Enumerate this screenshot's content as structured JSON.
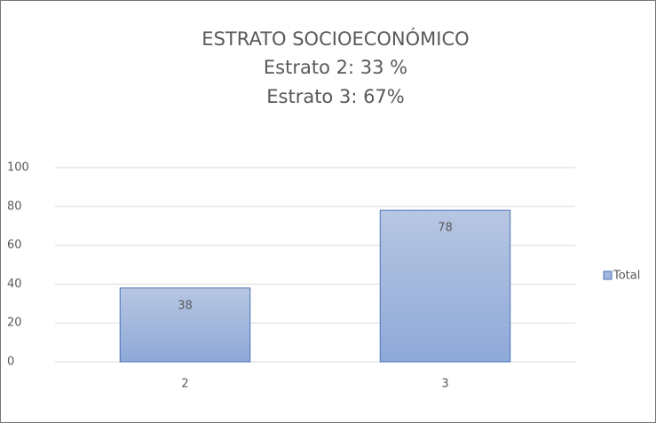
{
  "chart_data": {
    "type": "bar",
    "title": "ESTRATO SOCIOECONÓMICO",
    "subtitle": [
      "Estrato 2: 33 %",
      "Estrato 3: 67%"
    ],
    "categories": [
      "2",
      "3"
    ],
    "series": [
      {
        "name": "Total",
        "color": "#a3b7de",
        "values": [
          38,
          78
        ]
      }
    ],
    "ylim": [
      0,
      100
    ],
    "yticks": [
      0,
      20,
      40,
      60,
      80,
      100
    ],
    "grid": true,
    "legend": "right"
  }
}
